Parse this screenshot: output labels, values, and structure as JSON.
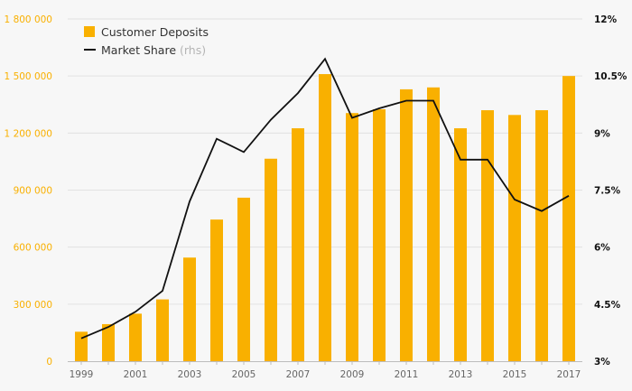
{
  "chart_data": {
    "type": "bar+line",
    "x": [
      "1999",
      "2000",
      "2001",
      "2002",
      "2003",
      "2004",
      "2005",
      "2006",
      "2007",
      "2008",
      "2009",
      "2010",
      "2011",
      "2012",
      "2013",
      "2014",
      "2015",
      "2016",
      "2017"
    ],
    "x_tick_labels": [
      "1999",
      "2001",
      "2003",
      "2005",
      "2007",
      "2009",
      "2011",
      "2013",
      "2015",
      "2017"
    ],
    "series": [
      {
        "name": "Customer Deposits",
        "kind": "bar",
        "axis": "left",
        "color": "#f9b000",
        "values": [
          155000,
          195000,
          250000,
          325000,
          545000,
          745000,
          860000,
          1065000,
          1225000,
          1510000,
          1305000,
          1325000,
          1430000,
          1440000,
          1225000,
          1320000,
          1295000,
          1320000,
          1500000
        ]
      },
      {
        "name": "Market Share",
        "legend_suffix": "(rhs)",
        "kind": "line",
        "axis": "right",
        "color": "#111111",
        "values": [
          3.6,
          3.9,
          4.3,
          4.85,
          7.2,
          8.85,
          8.5,
          9.35,
          10.05,
          10.95,
          9.4,
          9.65,
          9.85,
          9.85,
          8.3,
          8.3,
          7.25,
          6.95,
          7.35
        ]
      }
    ],
    "y_left": {
      "min": 0,
      "max": 1800000,
      "ticks": [
        0,
        300000,
        600000,
        900000,
        1200000,
        1500000,
        1800000
      ],
      "tick_labels": [
        "0",
        "300 000",
        "600 000",
        "900 000",
        "1 200 000",
        "1 500 000",
        "1 800 000"
      ],
      "label_color": "#f9b000"
    },
    "y_right": {
      "min": 3,
      "max": 12,
      "ticks": [
        3,
        4.5,
        6,
        7.5,
        9,
        10.5,
        12
      ],
      "tick_labels": [
        "3%",
        "4.5%",
        "6%",
        "7.5%",
        "9%",
        "10.5%",
        "12%"
      ]
    },
    "grid": true,
    "legend_position": "top-left"
  }
}
